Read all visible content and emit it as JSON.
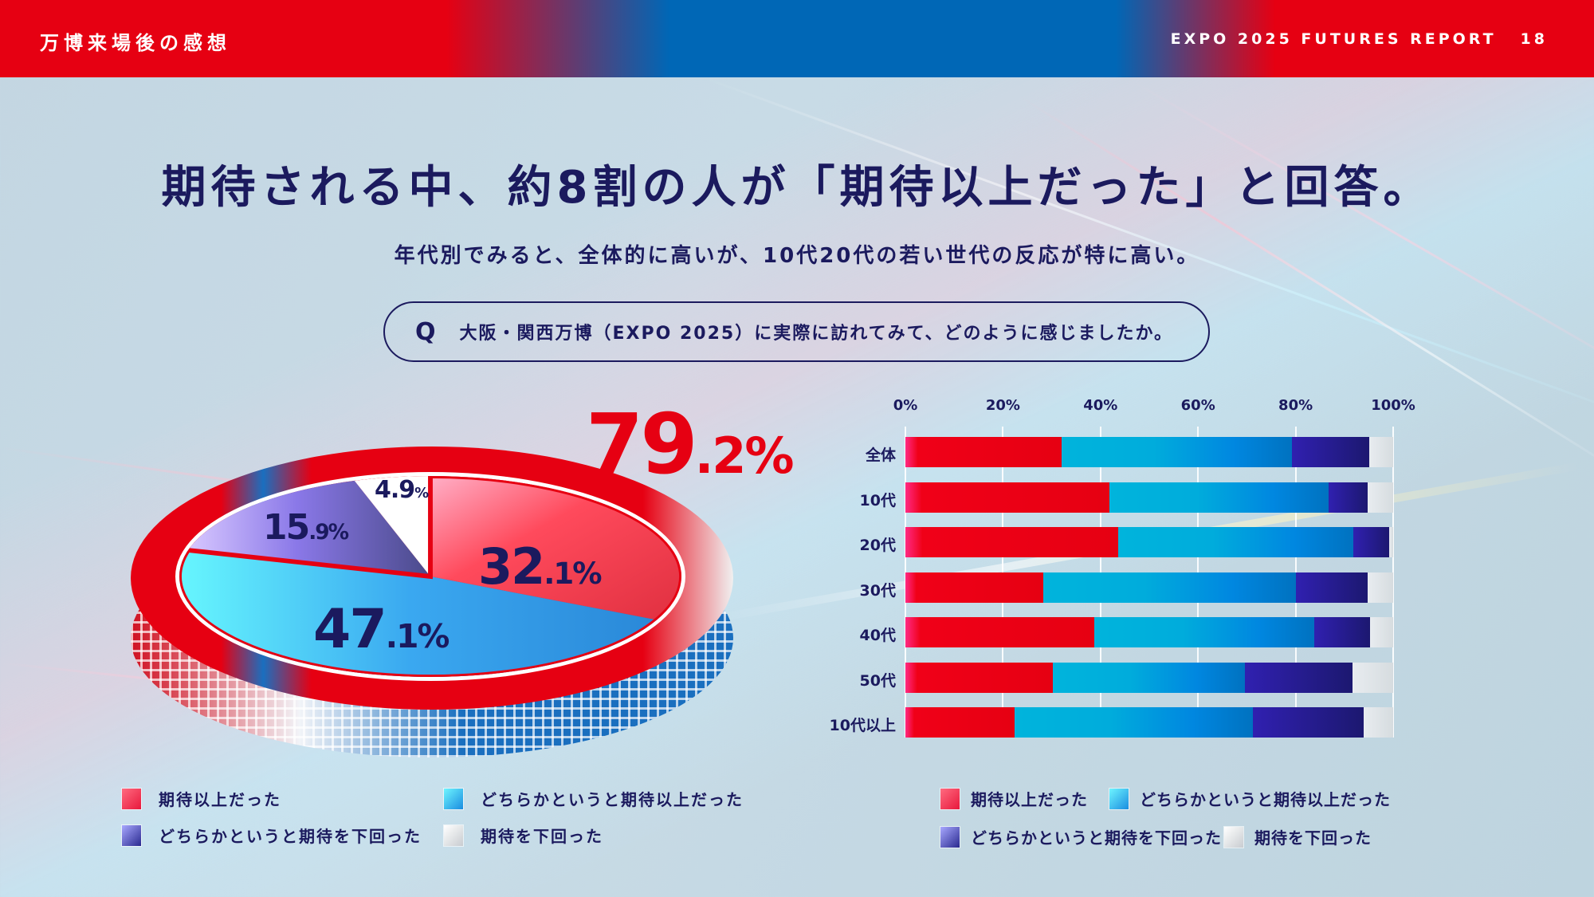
{
  "header": {
    "section_title": "万博来場後の感想",
    "report_title": "EXPO 2025 FUTURES REPORT",
    "page_number": "18"
  },
  "headline": "期待される中、約8割の人が「期待以上だった」と回答。",
  "subheadline": "年代別でみると、全体的に高いが、10代20代の若い世代の反応が特に高い。",
  "question": {
    "marker": "Q",
    "text": "大阪・関西万博（EXPO 2025）に実際に訪れてみて、どのように感じましたか。"
  },
  "colors": {
    "brand_red": "#e60012",
    "brand_blue": "#0067b6",
    "text_navy": "#1b1a5e",
    "series": [
      "#e60012",
      "#00acdc",
      "#2a1f9a",
      "#dde2e6"
    ]
  },
  "pie": {
    "highlight_total": {
      "int": "79",
      "dec": ".2%"
    },
    "slices": [
      {
        "int": "32",
        "dec": ".1%"
      },
      {
        "int": "47",
        "dec": ".1%"
      },
      {
        "int": "15",
        "dec": ".9%"
      },
      {
        "int": "4.9",
        "dec": "%"
      }
    ]
  },
  "pie_legend": [
    "期待以上だった",
    "どちらかというと期待以上だった",
    "どちらかというと期待を下回った",
    "期待を下回った"
  ],
  "bar_legend": [
    "期待以上だった",
    "どちらかというと期待以上だった",
    "どちらかというと期待を下回った",
    "期待を下回った"
  ],
  "chart_data": [
    {
      "type": "pie",
      "title": "大阪・関西万博（EXPO 2025）に実際に訪れてみて、どのように感じましたか。",
      "categories": [
        "期待以上だった",
        "どちらかというと期待以上だった",
        "どちらかというと期待を下回った",
        "期待を下回った"
      ],
      "values": [
        32.1,
        47.1,
        15.9,
        4.9
      ],
      "annotations": [
        "79.2% (期待以上だった + どちらかというと期待以上だった)"
      ],
      "legend_position": "bottom"
    },
    {
      "type": "bar",
      "orientation": "horizontal",
      "stacked": true,
      "categories": [
        "全体",
        "10代",
        "20代",
        "30代",
        "40代",
        "50代",
        "10代以上"
      ],
      "x_ticks": [
        "0%",
        "20%",
        "40%",
        "60%",
        "80%",
        "100%"
      ],
      "xlim": [
        0,
        100
      ],
      "grid": true,
      "legend_position": "bottom",
      "series": [
        {
          "name": "期待以上だった",
          "values": [
            32.1,
            41.8,
            43.6,
            28.3,
            38.8,
            30.3,
            22.4
          ]
        },
        {
          "name": "どちらかというと期待以上だった",
          "values": [
            47.1,
            45.0,
            48.2,
            51.8,
            45.0,
            39.3,
            48.8
          ]
        },
        {
          "name": "どちらかというと期待を下回った",
          "values": [
            15.9,
            7.9,
            7.4,
            14.7,
            11.5,
            22.1,
            22.8
          ]
        },
        {
          "name": "期待を下回った",
          "values": [
            4.9,
            5.3,
            0.8,
            5.2,
            4.7,
            8.3,
            6.0
          ]
        }
      ]
    }
  ]
}
